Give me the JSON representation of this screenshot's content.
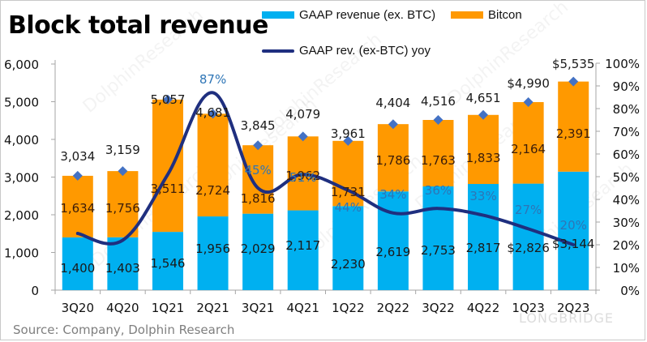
{
  "title": "Block total revenue",
  "legend": {
    "gaap": "GAAP revenue (ex. BTC)",
    "bitcoin": "Bitcon",
    "yoy": "GAAP rev. (ex-BTC) yoy"
  },
  "source": "Source: Company, Dolphin Research",
  "watermarks": {
    "dolphin": "DolphinResearch",
    "longbridge": "LONGBRIDGE"
  },
  "colors": {
    "gaap": "#00B0F0",
    "bitcoin": "#FF9900",
    "yoy_line": "#1F2F7F",
    "marker": "#4472C4",
    "yoy_label": "#2E75B6",
    "axis": "#a6a6a6"
  },
  "chart_data": {
    "type": "bar",
    "stacked": true,
    "title": "Block total revenue",
    "categories": [
      "3Q20",
      "4Q20",
      "1Q21",
      "2Q21",
      "3Q21",
      "4Q21",
      "1Q22",
      "2Q22",
      "3Q22",
      "4Q22",
      "1Q23",
      "2Q23"
    ],
    "series": [
      {
        "name": "GAAP revenue (ex. BTC)",
        "type": "bar",
        "axis": "left",
        "values": [
          1400,
          1403,
          1546,
          1956,
          2029,
          2117,
          2230,
          2619,
          2753,
          2817,
          2826,
          3144
        ],
        "labels": [
          "1,400",
          "1,403",
          "1,546",
          "1,956",
          "2,029",
          "2,117",
          "2,230",
          "2,619",
          "2,753",
          "2,817",
          "$2,826",
          "$3,144"
        ]
      },
      {
        "name": "Bitcon",
        "type": "bar",
        "axis": "left",
        "values": [
          1634,
          1756,
          3511,
          2724,
          1816,
          1962,
          1731,
          1786,
          1763,
          1833,
          2164,
          2391
        ],
        "labels": [
          "1,634",
          "1,756",
          "3,511",
          "2,724",
          "1,816",
          "1,962",
          "1,731",
          "1,786",
          "1,763",
          "1,833",
          "2,164",
          "2,391"
        ]
      },
      {
        "name": "Total",
        "type": "marker",
        "axis": "left",
        "values": [
          3034,
          3159,
          5057,
          4681,
          3845,
          4079,
          3961,
          4404,
          4516,
          4651,
          4990,
          5535
        ],
        "labels": [
          "3,034",
          "3,159",
          "5,057",
          "4,681",
          "3,845",
          "4,079",
          "3,961",
          "4,404",
          "4,516",
          "4,651",
          "$4,990",
          "$5,535"
        ]
      },
      {
        "name": "GAAP rev. (ex-BTC) yoy",
        "type": "line",
        "axis": "right",
        "values": [
          0.25,
          0.22,
          0.51,
          0.87,
          0.45,
          0.51,
          0.44,
          0.34,
          0.36,
          0.33,
          0.27,
          0.2
        ],
        "labels": [
          "",
          "",
          "",
          "87%",
          "45%",
          "51%",
          "44%",
          "34%",
          "36%",
          "33%",
          "27%",
          "20%"
        ]
      }
    ],
    "left_axis": {
      "min": 0,
      "max": 6000,
      "ticks": [
        "0",
        "1,000",
        "2,000",
        "3,000",
        "4,000",
        "5,000",
        "6,000"
      ]
    },
    "right_axis": {
      "min": 0,
      "max": 1,
      "ticks": [
        "0%",
        "10%",
        "20%",
        "30%",
        "40%",
        "50%",
        "60%",
        "70%",
        "80%",
        "90%",
        "100%"
      ]
    },
    "xlabel": "",
    "ylabel": "",
    "grid": false,
    "legend_position": "top-right"
  }
}
